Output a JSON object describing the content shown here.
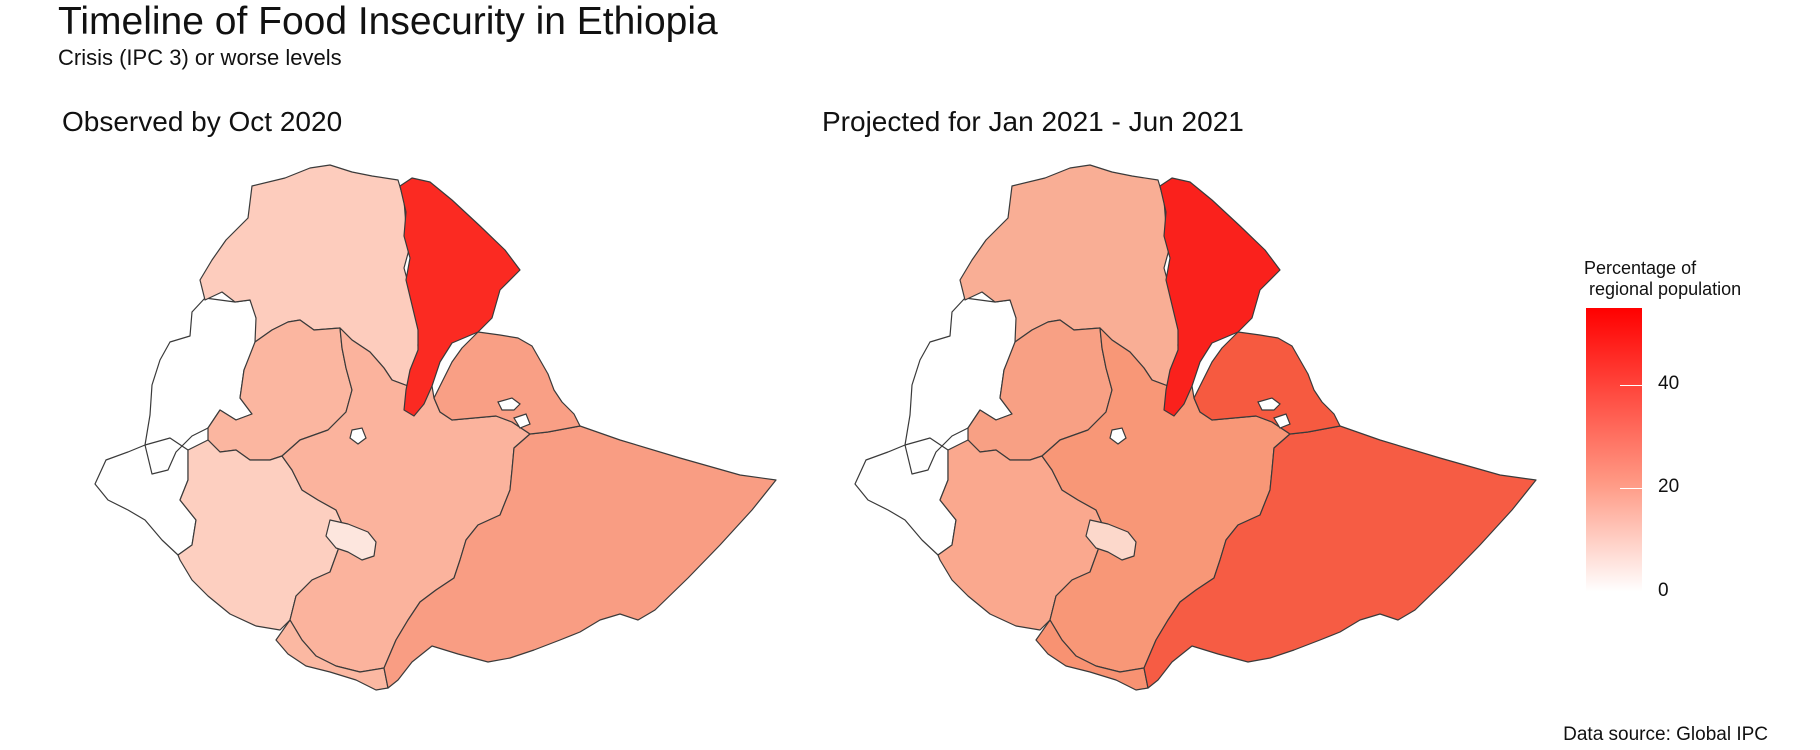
{
  "header": {
    "title": "Timeline of Food Insecurity in Ethiopia",
    "subtitle": "Crisis (IPC 3) or worse levels"
  },
  "panels": [
    {
      "title": "Observed by Oct 2020"
    },
    {
      "title": "Projected for Jan 2021 - Jun 2021"
    }
  ],
  "legend": {
    "title": "Percentage of\n regional population",
    "ticks": [
      "0",
      "20",
      "40"
    ],
    "colors": {
      "low": "#ffffff",
      "mid": "#ff9a85",
      "high": "#ff0000"
    }
  },
  "map_fills": {
    "observed": {
      "northwest": "#fdccbd",
      "west_white": "#ffffff",
      "tigray": "#fb2a22",
      "afar": "#f99f85",
      "east_central": "#fbb39d",
      "southeast": "#f99d83",
      "southwest_a": "#fbb6a0",
      "southwest_b": "#fdcfc0",
      "south_central": "#fbb8a2",
      "small_region": "#fde6de"
    },
    "projected": {
      "northwest": "#f9ae95",
      "west_white": "#ffffff",
      "tigray": "#fa211c",
      "afar": "#f65a40",
      "east_central": "#f89777",
      "southeast": "#f65c44",
      "southwest_a": "#f8a084",
      "southwest_b": "#faa88e",
      "south_central": "#f89272",
      "small_region": "#fcd8cb"
    }
  },
  "footer": {
    "source": "Data source: Global IPC"
  }
}
